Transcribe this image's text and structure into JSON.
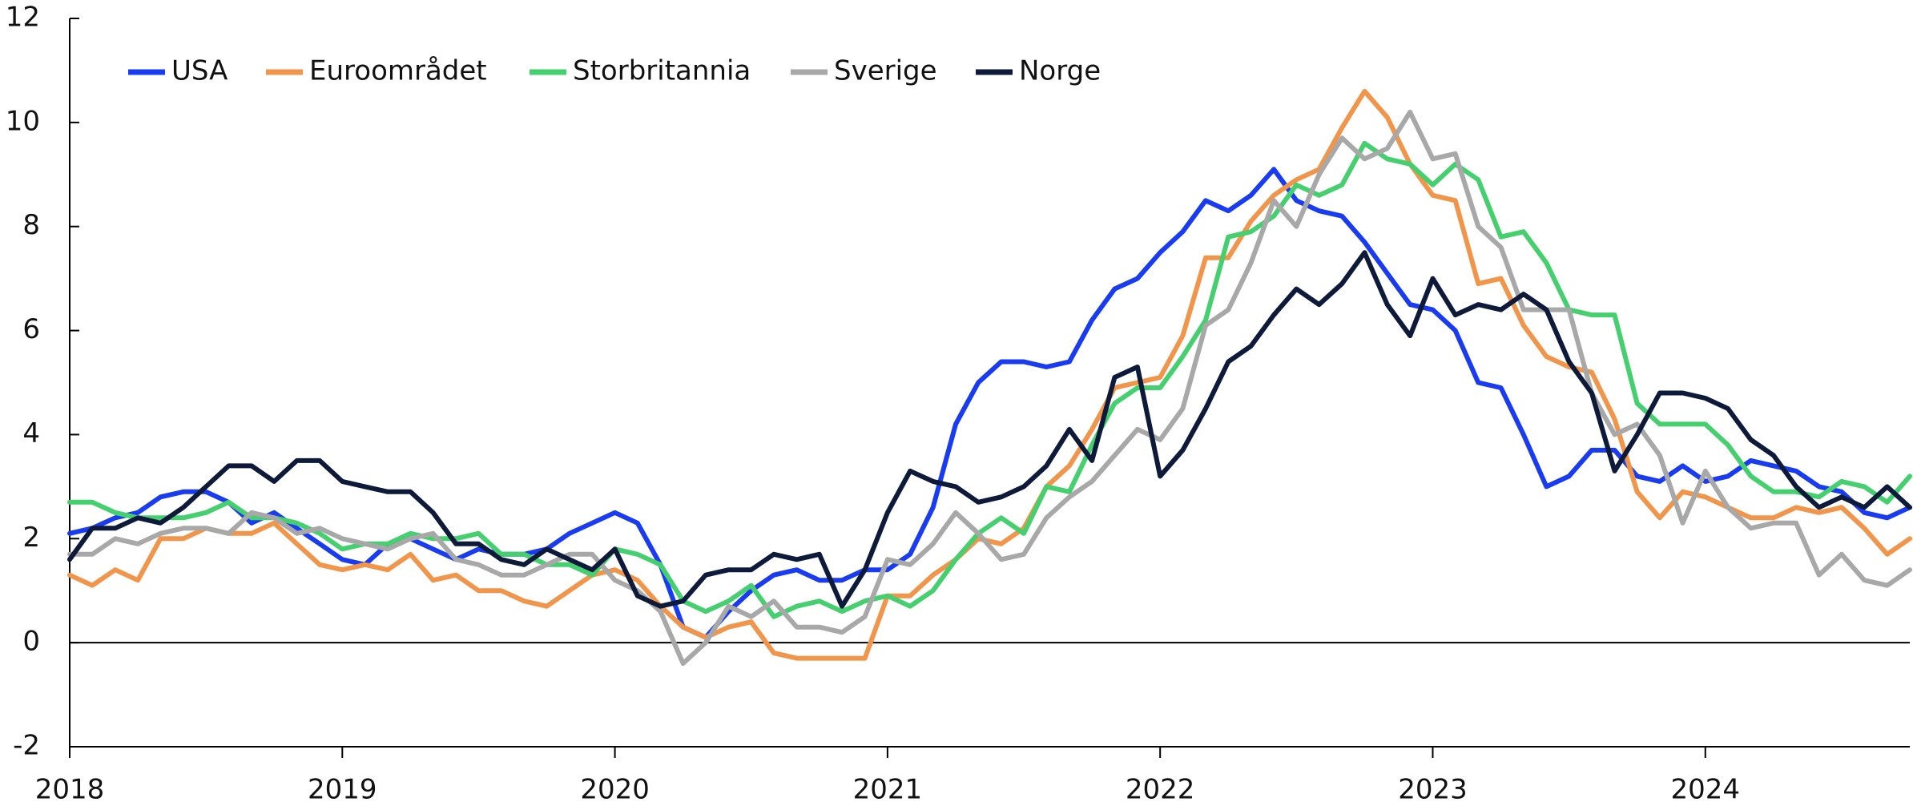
{
  "chart_data": {
    "type": "line",
    "x": [
      2018,
      2018.083,
      2018.167,
      2018.25,
      2018.333,
      2018.417,
      2018.5,
      2018.583,
      2018.667,
      2018.75,
      2018.833,
      2018.917,
      2019,
      2019.083,
      2019.167,
      2019.25,
      2019.333,
      2019.417,
      2019.5,
      2019.583,
      2019.667,
      2019.75,
      2019.833,
      2019.917,
      2020,
      2020.083,
      2020.167,
      2020.25,
      2020.333,
      2020.417,
      2020.5,
      2020.583,
      2020.667,
      2020.75,
      2020.833,
      2020.917,
      2021,
      2021.083,
      2021.167,
      2021.25,
      2021.333,
      2021.417,
      2021.5,
      2021.583,
      2021.667,
      2021.75,
      2021.833,
      2021.917,
      2022,
      2022.083,
      2022.167,
      2022.25,
      2022.333,
      2022.417,
      2022.5,
      2022.583,
      2022.667,
      2022.75,
      2022.833,
      2022.917,
      2023,
      2023.083,
      2023.167,
      2023.25,
      2023.333,
      2023.417,
      2023.5,
      2023.583,
      2023.667,
      2023.75,
      2023.833,
      2023.917,
      2024,
      2024.083,
      2024.167,
      2024.25,
      2024.333,
      2024.417,
      2024.5,
      2024.583,
      2024.667,
      2024.75
    ],
    "series": [
      {
        "name": "USA",
        "color": "#1a3cf0",
        "values": [
          2.1,
          2.2,
          2.4,
          2.5,
          2.8,
          2.9,
          2.9,
          2.7,
          2.3,
          2.5,
          2.2,
          1.9,
          1.6,
          1.5,
          1.9,
          2.0,
          1.8,
          1.6,
          1.8,
          1.7,
          1.7,
          1.8,
          2.1,
          2.3,
          2.5,
          2.3,
          1.5,
          0.3,
          0.1,
          0.6,
          1.0,
          1.3,
          1.4,
          1.2,
          1.2,
          1.4,
          1.4,
          1.7,
          2.6,
          4.2,
          5.0,
          5.4,
          5.4,
          5.3,
          5.4,
          6.2,
          6.8,
          7.0,
          7.5,
          7.9,
          8.5,
          8.3,
          8.6,
          9.1,
          8.5,
          8.3,
          8.2,
          7.7,
          7.1,
          6.5,
          6.4,
          6.0,
          5.0,
          4.9,
          4.0,
          3.0,
          3.2,
          3.7,
          3.7,
          3.2,
          3.1,
          3.4,
          3.1,
          3.2,
          3.5,
          3.4,
          3.3,
          3.0,
          2.9,
          2.5,
          2.4,
          2.6
        ]
      },
      {
        "name": "Euroområdet",
        "color": "#f0954a",
        "values": [
          1.3,
          1.1,
          1.4,
          1.2,
          2.0,
          2.0,
          2.2,
          2.1,
          2.1,
          2.3,
          1.9,
          1.5,
          1.4,
          1.5,
          1.4,
          1.7,
          1.2,
          1.3,
          1.0,
          1.0,
          0.8,
          0.7,
          1.0,
          1.3,
          1.4,
          1.2,
          0.7,
          0.3,
          0.1,
          0.3,
          0.4,
          -0.2,
          -0.3,
          -0.3,
          -0.3,
          -0.3,
          0.9,
          0.9,
          1.3,
          1.6,
          2.0,
          1.9,
          2.2,
          3.0,
          3.4,
          4.1,
          4.9,
          5.0,
          5.1,
          5.9,
          7.4,
          7.4,
          8.1,
          8.6,
          8.9,
          9.1,
          9.9,
          10.6,
          10.1,
          9.2,
          8.6,
          8.5,
          6.9,
          7.0,
          6.1,
          5.5,
          5.3,
          5.2,
          4.3,
          2.9,
          2.4,
          2.9,
          2.8,
          2.6,
          2.4,
          2.4,
          2.6,
          2.5,
          2.6,
          2.2,
          1.7,
          2.0
        ]
      },
      {
        "name": "Storbritannia",
        "color": "#45cf6e",
        "values": [
          2.7,
          2.7,
          2.5,
          2.4,
          2.4,
          2.4,
          2.5,
          2.7,
          2.4,
          2.4,
          2.3,
          2.1,
          1.8,
          1.9,
          1.9,
          2.1,
          2.0,
          2.0,
          2.1,
          1.7,
          1.7,
          1.5,
          1.5,
          1.3,
          1.8,
          1.7,
          1.5,
          0.8,
          0.6,
          0.8,
          1.1,
          0.5,
          0.7,
          0.8,
          0.6,
          0.8,
          0.9,
          0.7,
          1.0,
          1.6,
          2.1,
          2.4,
          2.1,
          3.0,
          2.9,
          3.8,
          4.6,
          4.9,
          4.9,
          5.5,
          6.2,
          7.8,
          7.9,
          8.2,
          8.8,
          8.6,
          8.8,
          9.6,
          9.3,
          9.2,
          8.8,
          9.2,
          8.9,
          7.8,
          7.9,
          7.3,
          6.4,
          6.3,
          6.3,
          4.6,
          4.2,
          4.2,
          4.2,
          3.8,
          3.2,
          2.9,
          2.9,
          2.8,
          3.1,
          3.0,
          2.7,
          3.2
        ]
      },
      {
        "name": "Sverige",
        "color": "#a8a8a8",
        "values": [
          1.7,
          1.7,
          2.0,
          1.9,
          2.1,
          2.2,
          2.2,
          2.1,
          2.5,
          2.4,
          2.1,
          2.2,
          2.0,
          1.9,
          1.8,
          2.0,
          2.1,
          1.6,
          1.5,
          1.3,
          1.3,
          1.5,
          1.7,
          1.7,
          1.2,
          1.0,
          0.6,
          -0.4,
          0.0,
          0.7,
          0.5,
          0.8,
          0.3,
          0.3,
          0.2,
          0.5,
          1.6,
          1.5,
          1.9,
          2.5,
          2.1,
          1.6,
          1.7,
          2.4,
          2.8,
          3.1,
          3.6,
          4.1,
          3.9,
          4.5,
          6.1,
          6.4,
          7.3,
          8.5,
          8.0,
          9.0,
          9.7,
          9.3,
          9.5,
          10.2,
          9.3,
          9.4,
          8.0,
          7.6,
          6.4,
          6.4,
          6.4,
          4.8,
          4.0,
          4.2,
          3.6,
          2.3,
          3.3,
          2.6,
          2.2,
          2.3,
          2.3,
          1.3,
          1.7,
          1.2,
          1.1,
          1.4
        ]
      },
      {
        "name": "Norge",
        "color": "#0e1a3a",
        "values": [
          1.6,
          2.2,
          2.2,
          2.4,
          2.3,
          2.6,
          3.0,
          3.4,
          3.4,
          3.1,
          3.5,
          3.5,
          3.1,
          3.0,
          2.9,
          2.9,
          2.5,
          1.9,
          1.9,
          1.6,
          1.5,
          1.8,
          1.6,
          1.4,
          1.8,
          0.9,
          0.7,
          0.8,
          1.3,
          1.4,
          1.4,
          1.7,
          1.6,
          1.7,
          0.7,
          1.4,
          2.5,
          3.3,
          3.1,
          3.0,
          2.7,
          2.8,
          3.0,
          3.4,
          4.1,
          3.5,
          5.1,
          5.3,
          3.2,
          3.7,
          4.5,
          5.4,
          5.7,
          6.3,
          6.8,
          6.5,
          6.9,
          7.5,
          6.5,
          5.9,
          7.0,
          6.3,
          6.5,
          6.4,
          6.7,
          6.4,
          5.4,
          4.8,
          3.3,
          4.0,
          4.8,
          4.8,
          4.7,
          4.5,
          3.9,
          3.6,
          3.0,
          2.6,
          2.8,
          2.6,
          3.0,
          2.6
        ]
      }
    ],
    "xlim": [
      2018,
      2024.75
    ],
    "xticks": [
      2018,
      2019,
      2020,
      2021,
      2022,
      2023,
      2024
    ],
    "ylim": [
      -2,
      12
    ],
    "yticks": [
      -2,
      0,
      2,
      4,
      6,
      8,
      10,
      12
    ],
    "grid": false,
    "legend": "top-left"
  }
}
